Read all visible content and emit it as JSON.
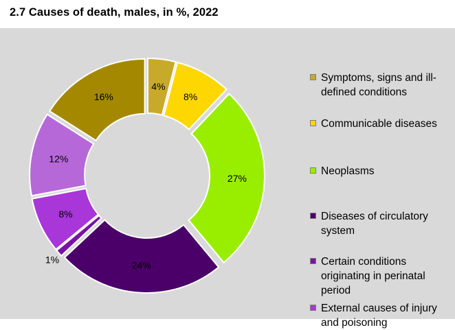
{
  "title": "2.7  Causes of death, males, in %, 2022",
  "chart_data": {
    "type": "pie",
    "categories": [
      "Symptoms, signs and ill-defined conditions",
      "Communicable diseases",
      "Neoplasms",
      "Diseases of circulatory system",
      "Certain conditions originating in perinatal period",
      "External causes of injury and poisoning",
      "",
      ""
    ],
    "values": [
      4,
      8,
      27,
      24,
      1,
      8,
      12,
      16
    ],
    "labels": [
      "4%",
      "8%",
      "27%",
      "24%",
      "1%",
      "8%",
      "12%",
      "16%"
    ],
    "colors": [
      "#c8aa2b",
      "#ffd700",
      "#99ee00",
      "#4b0069",
      "#7a13a5",
      "#a836d8",
      "#b768d8",
      "#a48900"
    ],
    "legend": {
      "position": "right",
      "entries": [
        {
          "label": "Symptoms, signs and ill-defined conditions",
          "color": "#c8aa2b"
        },
        {
          "label": "Communicable diseases",
          "color": "#ffd700"
        },
        {
          "label": "Neoplasms",
          "color": "#99ee00"
        },
        {
          "label": "Diseases of circulatory system",
          "color": "#4b0069"
        },
        {
          "label": "Certain conditions originating in perinatal period",
          "color": "#7a13a5"
        },
        {
          "label": "External causes of injury and poisoning",
          "color": "#a836d8"
        }
      ]
    }
  }
}
